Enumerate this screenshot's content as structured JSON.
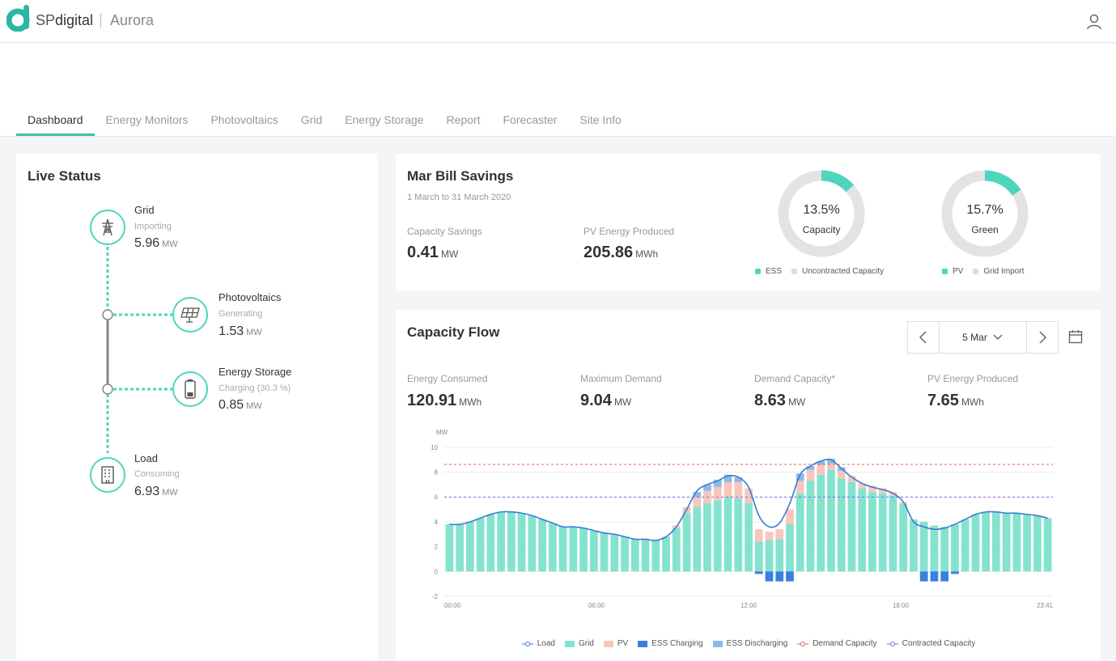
{
  "header": {
    "brand_sp": "SP",
    "brand_rest": "digital",
    "product": "Aurora"
  },
  "tabs": [
    {
      "label": "Dashboard",
      "active": true
    },
    {
      "label": "Energy Monitors"
    },
    {
      "label": "Photovoltaics"
    },
    {
      "label": "Grid"
    },
    {
      "label": "Energy Storage"
    },
    {
      "label": "Report"
    },
    {
      "label": "Forecaster"
    },
    {
      "label": "Site Info"
    }
  ],
  "live_status": {
    "title": "Live Status",
    "grid": {
      "name": "Grid",
      "state": "Importing",
      "value": "5.96",
      "unit": "MW"
    },
    "pv": {
      "name": "Photovoltaics",
      "state": "Generating",
      "value": "1.53",
      "unit": "MW"
    },
    "storage": {
      "name": "Energy Storage",
      "state": "Charging (30.3 %)",
      "value": "0.85",
      "unit": "MW"
    },
    "load": {
      "name": "Load",
      "state": "Consuming",
      "value": "6.93",
      "unit": "MW"
    }
  },
  "savings": {
    "title": "Mar Bill Savings",
    "period": "1 March to 31 March 2020",
    "capacity_label": "Capacity Savings",
    "capacity_value": "0.41",
    "capacity_unit": "MW",
    "pv_label": "PV Energy Produced",
    "pv_value": "205.86",
    "pv_unit": "MWh",
    "donut1": {
      "pct": "13.5%",
      "label": "Capacity",
      "fraction": 0.135,
      "legend_a": "ESS",
      "legend_b": "Uncontracted Capacity"
    },
    "donut2": {
      "pct": "15.7%",
      "label": "Green",
      "fraction": 0.157,
      "legend_a": "PV",
      "legend_b": "Grid Import"
    }
  },
  "capacity_flow": {
    "title": "Capacity Flow",
    "date": "5 Mar",
    "energy_consumed_label": "Energy Consumed",
    "energy_consumed_value": "120.91",
    "energy_consumed_unit": "MWh",
    "max_demand_label": "Maximum Demand",
    "max_demand_value": "9.04",
    "max_demand_unit": "MW",
    "demand_capacity_label": "Demand Capacity*",
    "demand_capacity_value": "8.63",
    "demand_capacity_unit": "MW",
    "pv_produced_label": "PV Energy Produced",
    "pv_produced_value": "7.65",
    "pv_produced_unit": "MWh"
  },
  "colors": {
    "accent": "#3dbfa8",
    "grid": "#84e3cf",
    "pv": "#f8c6bd",
    "ess_charging": "#3a7fe0",
    "ess_discharging": "#8fb9e6",
    "load": "#3a7bd5",
    "demand_capacity": "#e0605a",
    "contracted_capacity": "#7b68ee",
    "donut_bg": "#e3e3e3",
    "donut_fg": "#4ed6bd"
  },
  "chart_data": {
    "type": "bar",
    "ylabel": "MW",
    "ylim": [
      -2,
      10
    ],
    "yticks": [
      "-2",
      "0",
      "2",
      "4",
      "6",
      "8",
      "10"
    ],
    "xticks": [
      "00:00",
      "06:00",
      "12:00",
      "18:00",
      "23:41"
    ],
    "grid": true,
    "legend_position": "bottom",
    "demand_capacity": 8.63,
    "contracted_capacity": 6.0,
    "series": [
      {
        "name": "Grid",
        "values": [
          3.8,
          3.8,
          4.0,
          4.3,
          4.6,
          4.8,
          4.8,
          4.7,
          4.5,
          4.2,
          3.9,
          3.6,
          3.6,
          3.5,
          3.3,
          3.1,
          3.0,
          2.8,
          2.6,
          2.6,
          2.5,
          2.8,
          3.5,
          4.7,
          5.2,
          5.5,
          5.7,
          6.0,
          5.9,
          5.5,
          2.4,
          2.5,
          2.6,
          3.8,
          6.3,
          7.3,
          7.8,
          8.2,
          7.5,
          7.2,
          6.7,
          6.4,
          6.3,
          6.1,
          5.4,
          4.2,
          4.0,
          3.7,
          3.6,
          3.8,
          4.2,
          4.6,
          4.8,
          4.8,
          4.7,
          4.7,
          4.6,
          4.5,
          4.3
        ]
      },
      {
        "name": "PV",
        "values": [
          0,
          0,
          0,
          0,
          0,
          0,
          0,
          0,
          0,
          0,
          0,
          0,
          0,
          0,
          0,
          0,
          0,
          0,
          0,
          0,
          0,
          0,
          0.2,
          0.5,
          0.8,
          1.0,
          1.1,
          1.2,
          1.3,
          1.2,
          1.0,
          0.7,
          0.8,
          1.2,
          1.0,
          0.9,
          0.8,
          0.5,
          0.6,
          0.5,
          0.4,
          0.5,
          0.4,
          0.3,
          0.2,
          0,
          0,
          0,
          0,
          0,
          0,
          0,
          0,
          0,
          0,
          0,
          0,
          0,
          0
        ]
      },
      {
        "name": "ESS Charging",
        "values": [
          0,
          0,
          0,
          0,
          0,
          0,
          0,
          0,
          0,
          0,
          0,
          0,
          0,
          0,
          0,
          0,
          0,
          0,
          0,
          0,
          0,
          0,
          0,
          0,
          0,
          0,
          0,
          0,
          0,
          0,
          -0.2,
          -0.8,
          -0.8,
          -0.8,
          0,
          0,
          0,
          0,
          0,
          0,
          0,
          0,
          0,
          0,
          0,
          0,
          -0.8,
          -0.8,
          -0.8,
          -0.2,
          0,
          0,
          0,
          0,
          0,
          0,
          0,
          0,
          0
        ]
      },
      {
        "name": "ESS Discharging",
        "values": [
          0,
          0,
          0,
          0,
          0,
          0,
          0,
          0,
          0,
          0,
          0,
          0,
          0,
          0,
          0,
          0,
          0,
          0,
          0,
          0,
          0,
          0,
          0,
          0,
          0.4,
          0.5,
          0.6,
          0.6,
          0.4,
          0,
          0,
          0,
          0,
          0,
          0.6,
          0.3,
          0.3,
          0.4,
          0.3,
          0,
          0,
          0,
          0,
          0,
          0,
          0,
          0,
          0,
          0,
          0,
          0,
          0,
          0,
          0,
          0,
          0,
          0,
          0,
          0
        ]
      },
      {
        "name": "Load",
        "values": [
          3.8,
          3.8,
          4.0,
          4.3,
          4.6,
          4.8,
          4.8,
          4.7,
          4.5,
          4.2,
          3.9,
          3.6,
          3.6,
          3.5,
          3.3,
          3.1,
          3.0,
          2.8,
          2.6,
          2.6,
          2.5,
          2.8,
          3.6,
          5.0,
          6.5,
          7.0,
          7.3,
          7.7,
          7.6,
          6.8,
          4.5,
          3.6,
          3.9,
          5.5,
          7.8,
          8.5,
          8.9,
          9.0,
          8.3,
          7.6,
          7.1,
          6.8,
          6.6,
          6.3,
          5.6,
          4.0,
          3.6,
          3.4,
          3.5,
          3.8,
          4.2,
          4.6,
          4.8,
          4.8,
          4.7,
          4.7,
          4.6,
          4.5,
          4.3
        ]
      }
    ]
  },
  "chart_legend": [
    {
      "label": "Load",
      "color": "#3a7bd5",
      "kind": "line-marker"
    },
    {
      "label": "Grid",
      "color": "#84e3cf",
      "kind": "box"
    },
    {
      "label": "PV",
      "color": "#f8c6bd",
      "kind": "box"
    },
    {
      "label": "ESS Charging",
      "color": "#3a7fe0",
      "kind": "box"
    },
    {
      "label": "ESS Discharging",
      "color": "#8fb9e6",
      "kind": "box"
    },
    {
      "label": "Demand Capacity",
      "color": "#e0605a",
      "kind": "line-marker"
    },
    {
      "label": "Contracted Capacity",
      "color": "#7b68ee",
      "kind": "line-marker"
    }
  ]
}
